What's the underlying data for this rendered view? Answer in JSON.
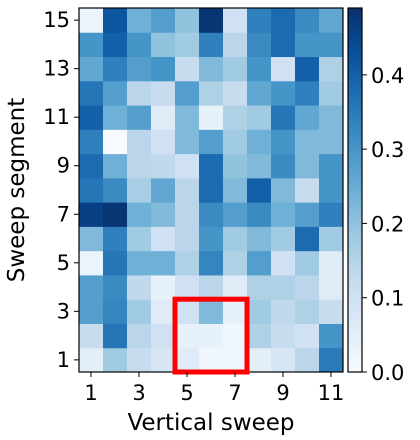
{
  "chart_data": {
    "type": "heatmap",
    "xlabel": "Vertical sweep",
    "ylabel": "Sweep segment",
    "x_categories": [
      1,
      2,
      3,
      4,
      5,
      6,
      7,
      8,
      9,
      10,
      11
    ],
    "y_categories": [
      1,
      2,
      3,
      4,
      5,
      6,
      7,
      8,
      9,
      10,
      11,
      12,
      13,
      14,
      15
    ],
    "x_ticks": [
      1,
      3,
      5,
      7,
      9,
      11
    ],
    "y_ticks": [
      1,
      3,
      5,
      7,
      9,
      11,
      13,
      15
    ],
    "colorbar": {
      "min": 0.0,
      "max": 0.49,
      "ticks": [
        "0.0",
        "0.1",
        "0.2",
        "0.3",
        "0.4"
      ],
      "colormap": "Blues"
    },
    "values": [
      [
        0.05,
        0.18,
        0.12,
        0.08,
        0.06,
        0.02,
        0.02,
        0.05,
        0.08,
        0.14,
        0.35
      ],
      [
        0.12,
        0.36,
        0.14,
        0.1,
        0.04,
        0.04,
        0.02,
        0.16,
        0.12,
        0.1,
        0.3
      ],
      [
        0.28,
        0.33,
        0.18,
        0.06,
        0.1,
        0.22,
        0.04,
        0.18,
        0.13,
        0.16,
        0.12
      ],
      [
        0.28,
        0.32,
        0.13,
        0.04,
        0.1,
        0.14,
        0.06,
        0.16,
        0.16,
        0.14,
        0.06
      ],
      [
        0.03,
        0.36,
        0.24,
        0.24,
        0.16,
        0.33,
        0.16,
        0.28,
        0.1,
        0.18,
        0.06
      ],
      [
        0.22,
        0.34,
        0.18,
        0.1,
        0.14,
        0.3,
        0.18,
        0.22,
        0.18,
        0.38,
        0.18
      ],
      [
        0.46,
        0.48,
        0.24,
        0.22,
        0.14,
        0.32,
        0.28,
        0.32,
        0.24,
        0.28,
        0.34
      ],
      [
        0.36,
        0.32,
        0.17,
        0.26,
        0.14,
        0.38,
        0.22,
        0.4,
        0.22,
        0.12,
        0.3
      ],
      [
        0.38,
        0.24,
        0.14,
        0.13,
        0.1,
        0.38,
        0.2,
        0.22,
        0.32,
        0.22,
        0.3
      ],
      [
        0.34,
        0.0,
        0.14,
        0.1,
        0.22,
        0.28,
        0.18,
        0.24,
        0.3,
        0.22,
        0.22
      ],
      [
        0.4,
        0.24,
        0.28,
        0.06,
        0.22,
        0.04,
        0.16,
        0.18,
        0.36,
        0.26,
        0.22
      ],
      [
        0.36,
        0.28,
        0.14,
        0.12,
        0.28,
        0.16,
        0.12,
        0.26,
        0.3,
        0.34,
        0.18
      ],
      [
        0.26,
        0.34,
        0.28,
        0.3,
        0.12,
        0.22,
        0.18,
        0.3,
        0.1,
        0.4,
        0.16
      ],
      [
        0.3,
        0.4,
        0.3,
        0.2,
        0.18,
        0.34,
        0.14,
        0.32,
        0.38,
        0.3,
        0.3
      ],
      [
        0.03,
        0.42,
        0.24,
        0.28,
        0.2,
        0.48,
        0.1,
        0.34,
        0.38,
        0.32,
        0.26
      ]
    ],
    "highlight": {
      "x_range": [
        5,
        7
      ],
      "y_range": [
        1,
        3
      ],
      "color": "#ff0000"
    }
  }
}
